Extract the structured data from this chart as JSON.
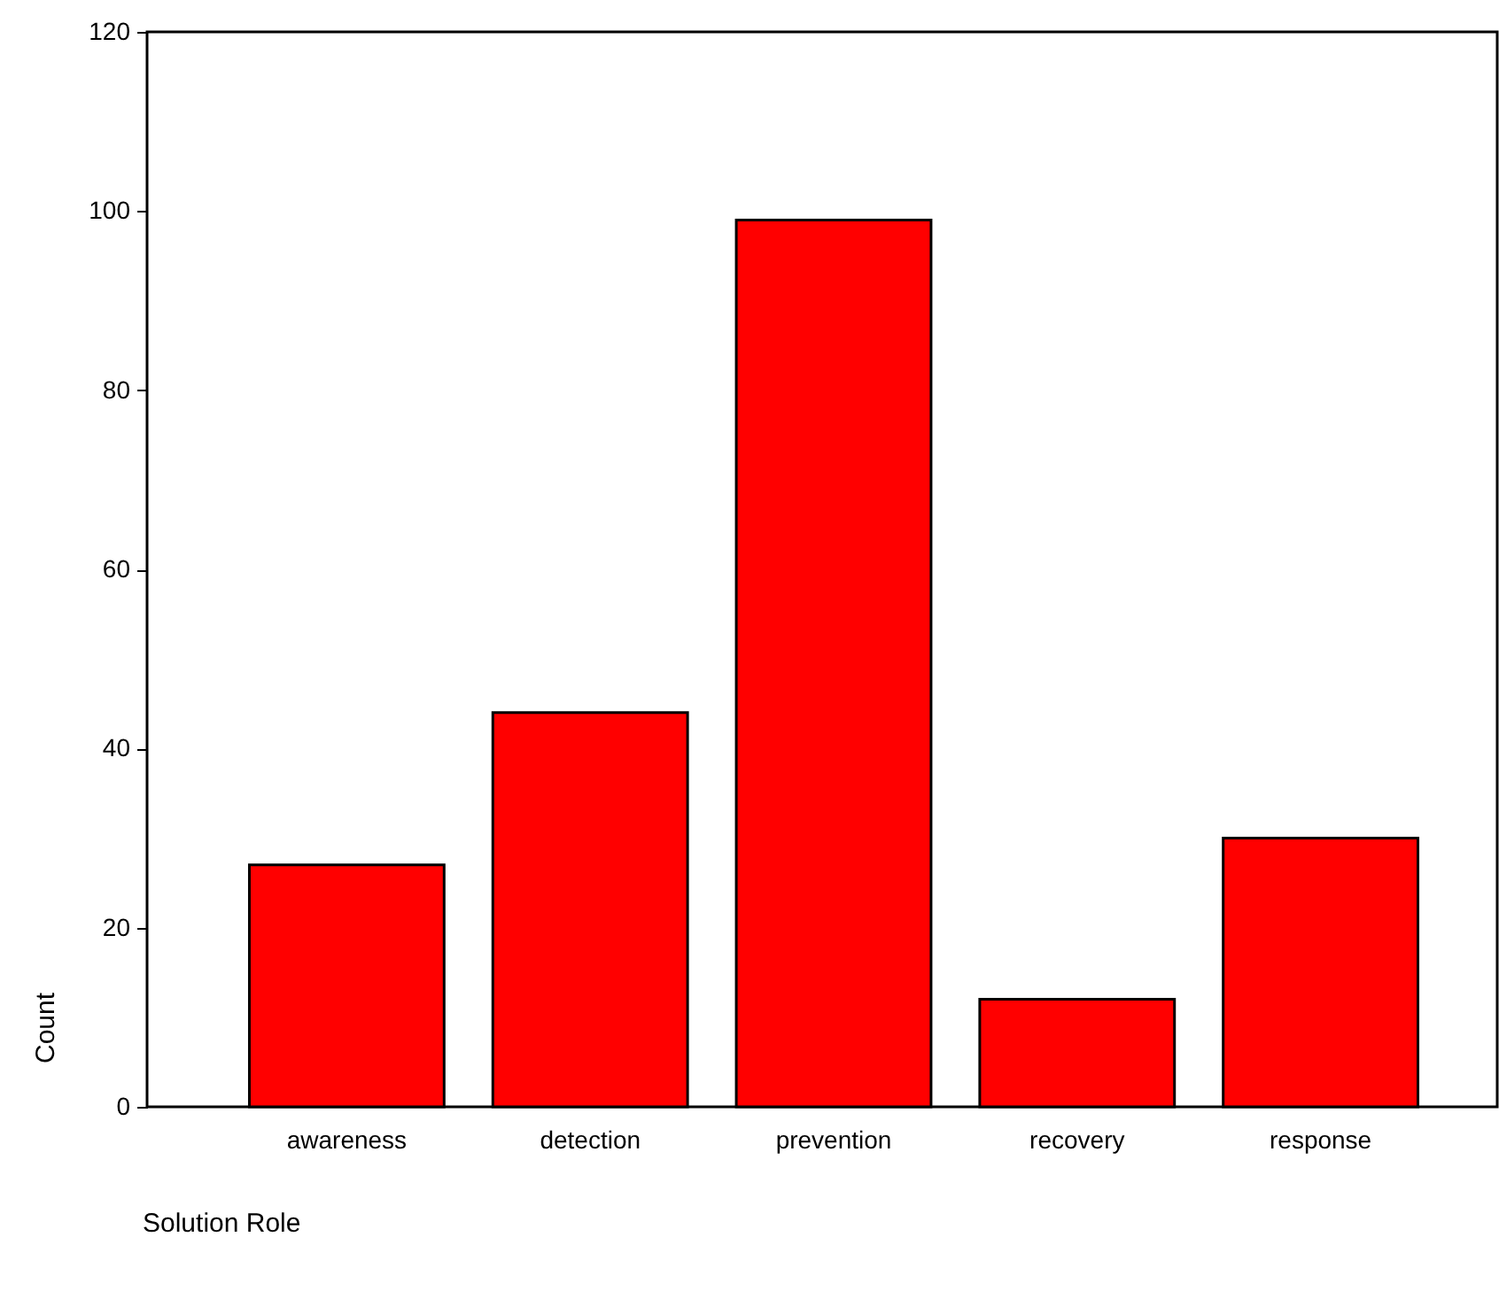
{
  "chart_data": {
    "type": "bar",
    "xlabel": "Solution Role",
    "ylabel": "Count",
    "categories": [
      "awareness",
      "detection",
      "prevention",
      "recovery",
      "response"
    ],
    "values": [
      27,
      44,
      99,
      12,
      30
    ],
    "color": "#ff0000",
    "ylim": [
      0,
      120
    ],
    "yticks": [
      0,
      20,
      40,
      60,
      80,
      100,
      120
    ],
    "grid": false
  }
}
